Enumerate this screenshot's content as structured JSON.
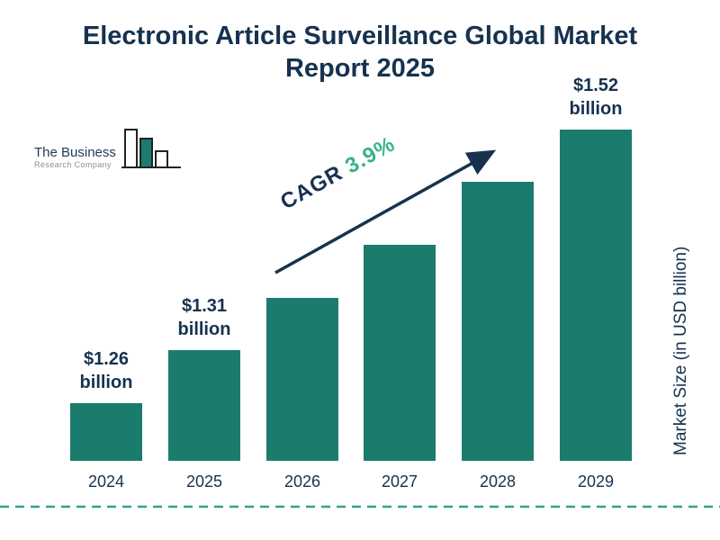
{
  "title": {
    "line1": "Electronic Article Surveillance Global Market",
    "line2": "Report 2025"
  },
  "logo": {
    "line1": "The Business",
    "line2": "Research Company"
  },
  "annotation": {
    "cagr_label": "CAGR",
    "cagr_value": "3.9%"
  },
  "y_axis_label": "Market Size (in USD billion)",
  "chart_data": {
    "type": "bar",
    "title": "Electronic Article Surveillance Global Market Report 2025",
    "categories": [
      "2024",
      "2025",
      "2026",
      "2027",
      "2028",
      "2029"
    ],
    "values": [
      1.26,
      1.31,
      1.36,
      1.41,
      1.47,
      1.52
    ],
    "value_labels": [
      {
        "index": 0,
        "line1": "$1.26",
        "line2": "billion"
      },
      {
        "index": 1,
        "line1": "$1.31",
        "line2": "billion"
      },
      {
        "index": 5,
        "line1": "$1.52",
        "line2": "billion"
      }
    ],
    "cagr": "3.9%",
    "xlabel": "",
    "ylabel": "Market Size (in USD billion)",
    "ylim": [
      1.205,
      1.53
    ],
    "grid": false,
    "legend": false,
    "bar_color": "#1b7c6e"
  },
  "colors": {
    "navy": "#16324f",
    "bar_teal": "#1b7c6e",
    "cagr_green": "#35b387",
    "dashed_line_teal": "#2fa192",
    "logo_gray": "#8a9096"
  }
}
